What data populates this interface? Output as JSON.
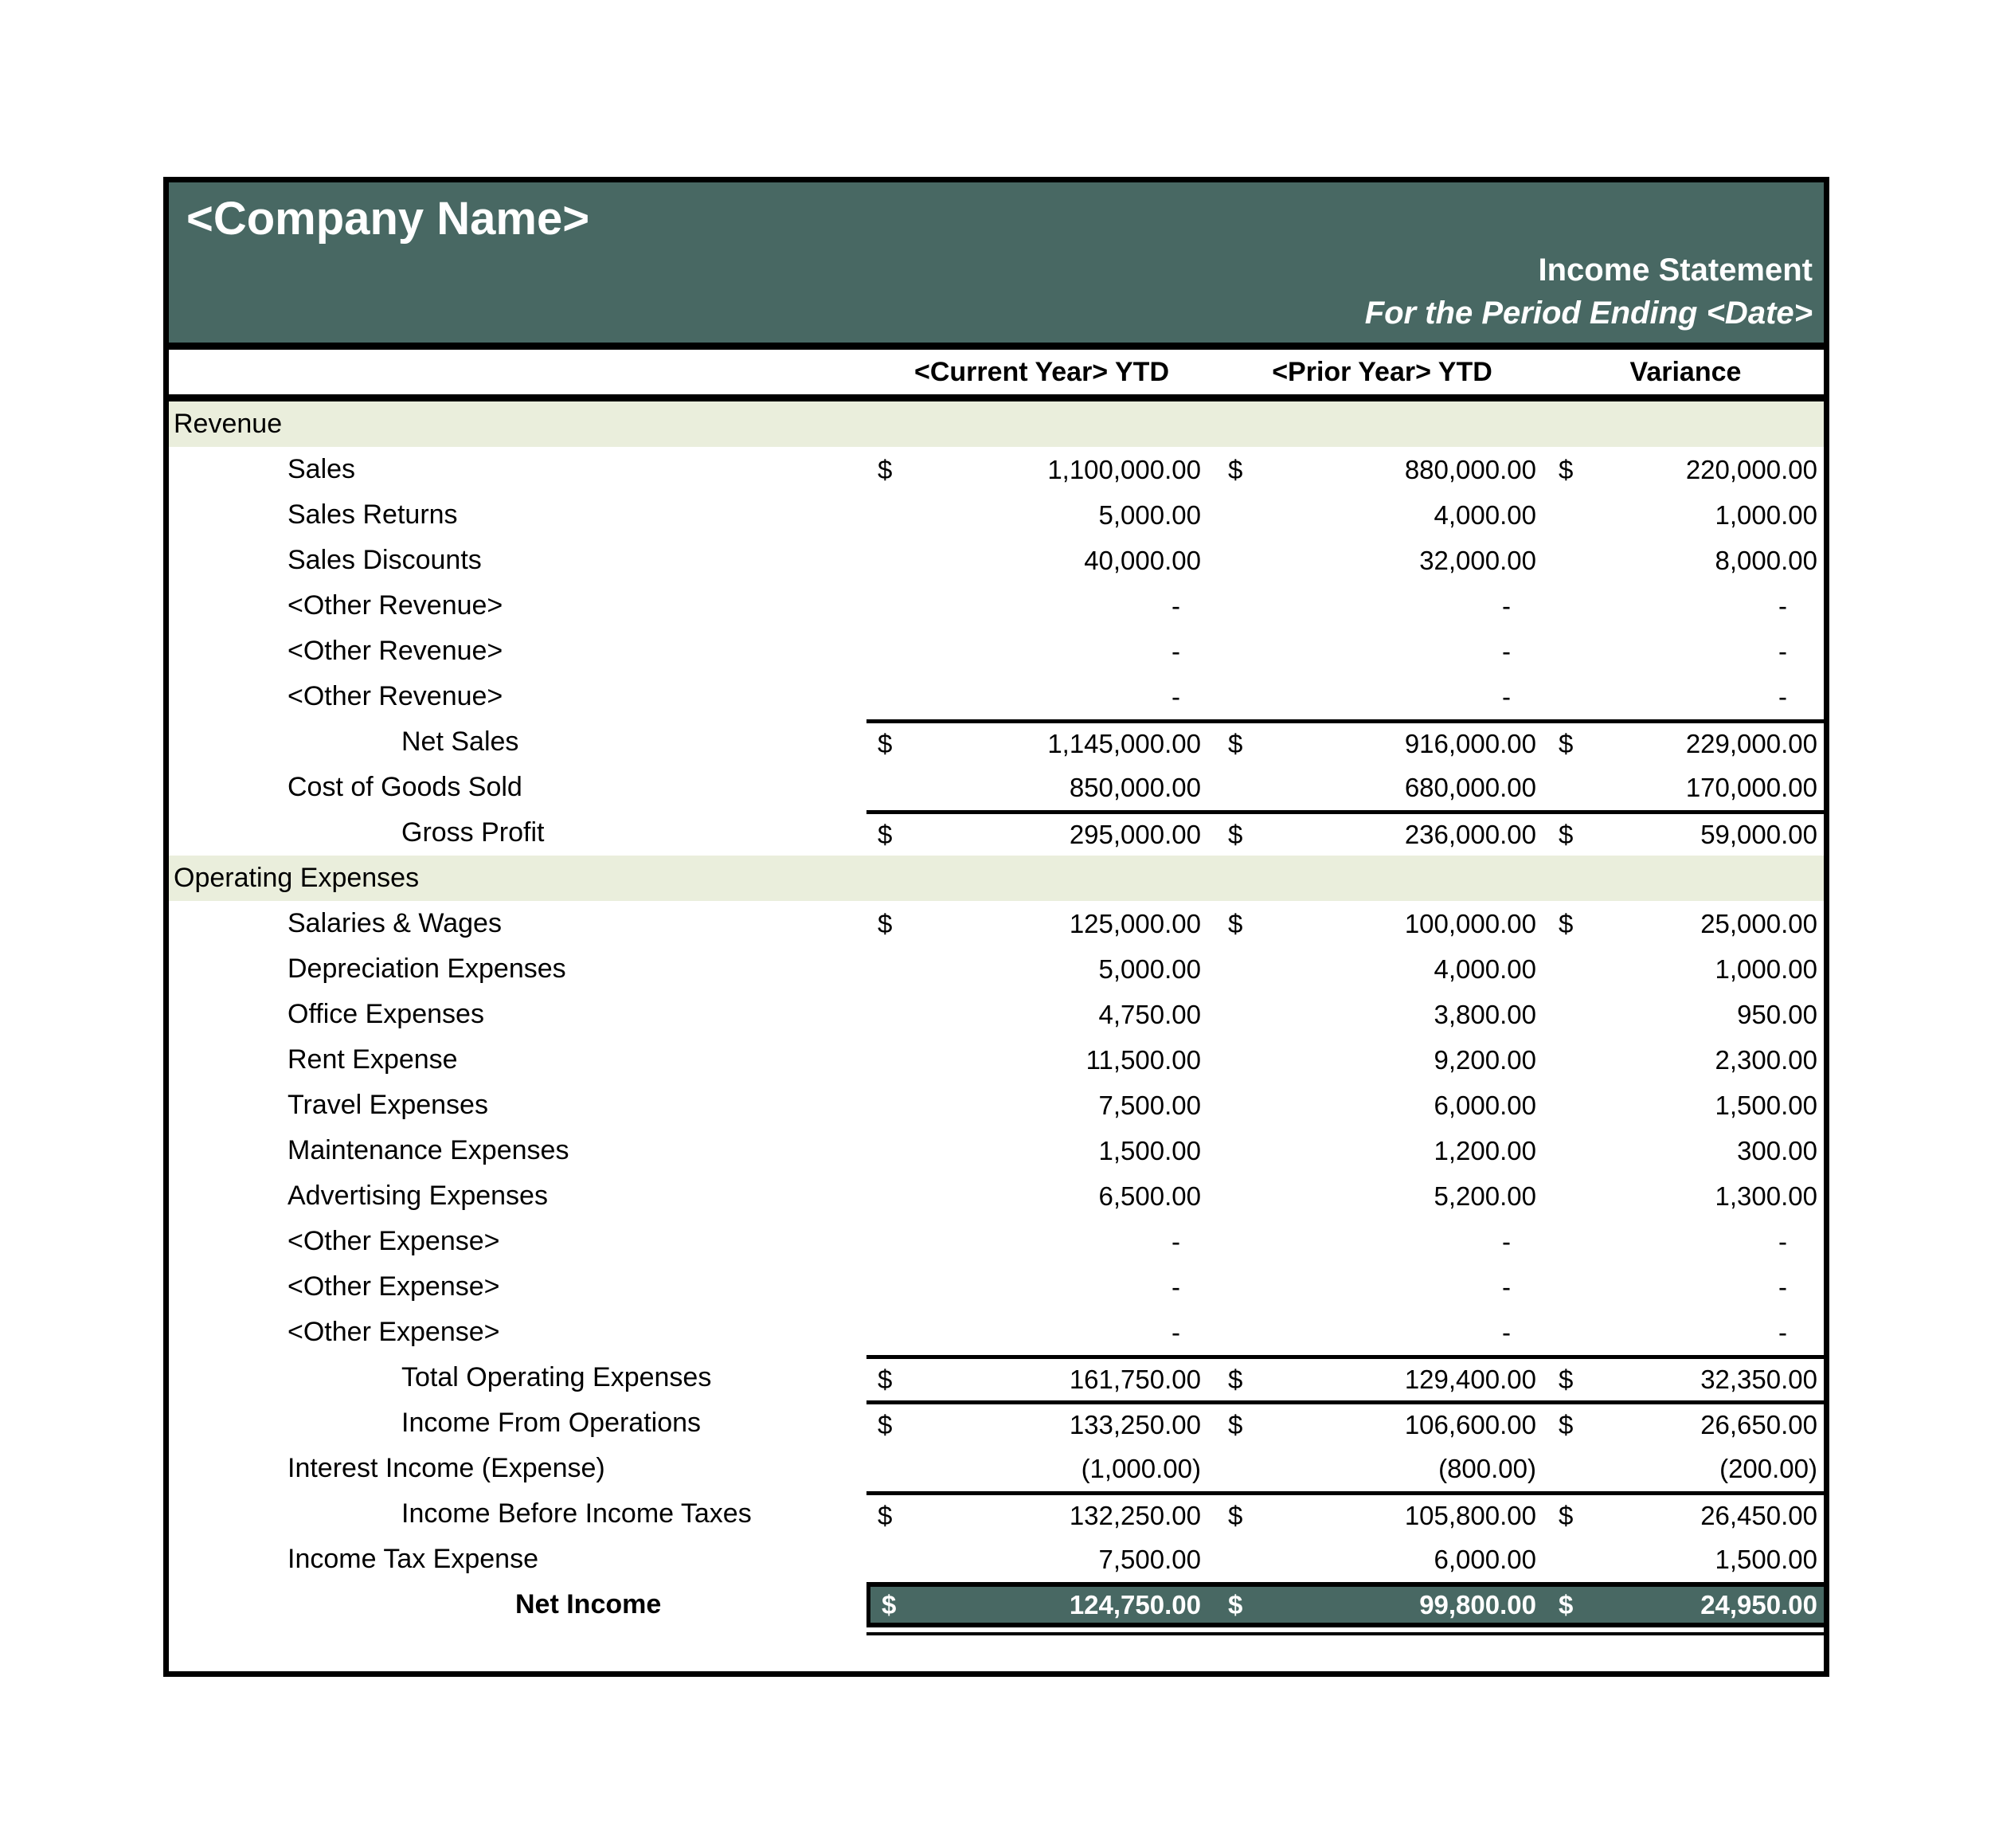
{
  "header": {
    "company_name": "<Company Name>",
    "report_title": "Income Statement",
    "period_line": "For the Period Ending <Date>"
  },
  "columns": {
    "current": "<Current Year> YTD",
    "prior": "<Prior Year> YTD",
    "variance": "Variance"
  },
  "colors": {
    "title_band_teal": "#486863",
    "net_income_bar_teal": "#486863",
    "section_band_green": "#EAEEDC",
    "border_black": "#000000",
    "title_text_white": "#FFFFFF"
  },
  "rows": [
    {
      "type": "section",
      "label": "Revenue"
    },
    {
      "type": "item",
      "label": "Sales",
      "indent": 1,
      "cy_sym": "$",
      "cy": "1,100,000.00",
      "py_sym": "$",
      "py": "880,000.00",
      "var_sym": "$",
      "var": "220,000.00"
    },
    {
      "type": "item",
      "label": "Sales Returns",
      "indent": 1,
      "cy_sym": "",
      "cy": "5,000.00",
      "py_sym": "",
      "py": "4,000.00",
      "var_sym": "",
      "var": "1,000.00"
    },
    {
      "type": "item",
      "label": "Sales Discounts",
      "indent": 1,
      "cy_sym": "",
      "cy": "40,000.00",
      "py_sym": "",
      "py": "32,000.00",
      "var_sym": "",
      "var": "8,000.00"
    },
    {
      "type": "item",
      "label": "<Other Revenue>",
      "indent": 1,
      "cy_sym": "",
      "cy": "-",
      "py_sym": "",
      "py": "-",
      "var_sym": "",
      "var": "-"
    },
    {
      "type": "item",
      "label": "<Other Revenue>",
      "indent": 1,
      "cy_sym": "",
      "cy": "-",
      "py_sym": "",
      "py": "-",
      "var_sym": "",
      "var": "-"
    },
    {
      "type": "item",
      "label": "<Other Revenue>",
      "indent": 1,
      "cy_sym": "",
      "cy": "-",
      "py_sym": "",
      "py": "-",
      "var_sym": "",
      "var": "-"
    },
    {
      "type": "subtotal",
      "label": "Net Sales",
      "indent": 2,
      "rule": true,
      "cy_sym": "$",
      "cy": "1,145,000.00",
      "py_sym": "$",
      "py": "916,000.00",
      "var_sym": "$",
      "var": "229,000.00"
    },
    {
      "type": "item",
      "label": "Cost of Goods Sold",
      "indent": 1,
      "cy_sym": "",
      "cy": "850,000.00",
      "py_sym": "",
      "py": "680,000.00",
      "var_sym": "",
      "var": "170,000.00"
    },
    {
      "type": "subtotal",
      "label": "Gross Profit",
      "indent": 2,
      "rule": true,
      "cy_sym": "$",
      "cy": "295,000.00",
      "py_sym": "$",
      "py": "236,000.00",
      "var_sym": "$",
      "var": "59,000.00"
    },
    {
      "type": "section",
      "label": "Operating Expenses"
    },
    {
      "type": "item",
      "label": "Salaries & Wages",
      "indent": 1,
      "cy_sym": "$",
      "cy": "125,000.00",
      "py_sym": "$",
      "py": "100,000.00",
      "var_sym": "$",
      "var": "25,000.00"
    },
    {
      "type": "item",
      "label": "Depreciation Expenses",
      "indent": 1,
      "cy_sym": "",
      "cy": "5,000.00",
      "py_sym": "",
      "py": "4,000.00",
      "var_sym": "",
      "var": "1,000.00"
    },
    {
      "type": "item",
      "label": "Office Expenses",
      "indent": 1,
      "cy_sym": "",
      "cy": "4,750.00",
      "py_sym": "",
      "py": "3,800.00",
      "var_sym": "",
      "var": "950.00"
    },
    {
      "type": "item",
      "label": "Rent Expense",
      "indent": 1,
      "cy_sym": "",
      "cy": "11,500.00",
      "py_sym": "",
      "py": "9,200.00",
      "var_sym": "",
      "var": "2,300.00"
    },
    {
      "type": "item",
      "label": "Travel Expenses",
      "indent": 1,
      "cy_sym": "",
      "cy": "7,500.00",
      "py_sym": "",
      "py": "6,000.00",
      "var_sym": "",
      "var": "1,500.00"
    },
    {
      "type": "item",
      "label": "Maintenance Expenses",
      "indent": 1,
      "cy_sym": "",
      "cy": "1,500.00",
      "py_sym": "",
      "py": "1,200.00",
      "var_sym": "",
      "var": "300.00"
    },
    {
      "type": "item",
      "label": "Advertising Expenses",
      "indent": 1,
      "cy_sym": "",
      "cy": "6,500.00",
      "py_sym": "",
      "py": "5,200.00",
      "var_sym": "",
      "var": "1,300.00"
    },
    {
      "type": "item",
      "label": "<Other Expense>",
      "indent": 1,
      "cy_sym": "",
      "cy": "-",
      "py_sym": "",
      "py": "-",
      "var_sym": "",
      "var": "-"
    },
    {
      "type": "item",
      "label": "<Other Expense>",
      "indent": 1,
      "cy_sym": "",
      "cy": "-",
      "py_sym": "",
      "py": "-",
      "var_sym": "",
      "var": "-"
    },
    {
      "type": "item",
      "label": "<Other Expense>",
      "indent": 1,
      "cy_sym": "",
      "cy": "-",
      "py_sym": "",
      "py": "-",
      "var_sym": "",
      "var": "-"
    },
    {
      "type": "subtotal",
      "label": "Total Operating Expenses",
      "indent": 2,
      "rule": true,
      "cy_sym": "$",
      "cy": "161,750.00",
      "py_sym": "$",
      "py": "129,400.00",
      "var_sym": "$",
      "var": "32,350.00"
    },
    {
      "type": "subtotal",
      "label": "Income From Operations",
      "indent": 2,
      "rule": true,
      "cy_sym": "$",
      "cy": "133,250.00",
      "py_sym": "$",
      "py": "106,600.00",
      "var_sym": "$",
      "var": "26,650.00"
    },
    {
      "type": "item",
      "label": "Interest Income (Expense)",
      "indent": 1,
      "cy_sym": "",
      "cy": "(1,000.00)",
      "py_sym": "",
      "py": "(800.00)",
      "var_sym": "",
      "var": "(200.00)"
    },
    {
      "type": "subtotal",
      "label": "Income Before Income Taxes",
      "indent": 2,
      "rule": true,
      "cy_sym": "$",
      "cy": "132,250.00",
      "py_sym": "$",
      "py": "105,800.00",
      "var_sym": "$",
      "var": "26,450.00"
    },
    {
      "type": "item",
      "label": "Income Tax Expense",
      "indent": 1,
      "cy_sym": "",
      "cy": "7,500.00",
      "py_sym": "",
      "py": "6,000.00",
      "var_sym": "",
      "var": "1,500.00"
    },
    {
      "type": "net",
      "label": "Net Income",
      "indent": 3,
      "cy_sym": "$",
      "cy": "124,750.00",
      "py_sym": "$",
      "py": "99,800.00",
      "var_sym": "$",
      "var": "24,950.00"
    }
  ]
}
